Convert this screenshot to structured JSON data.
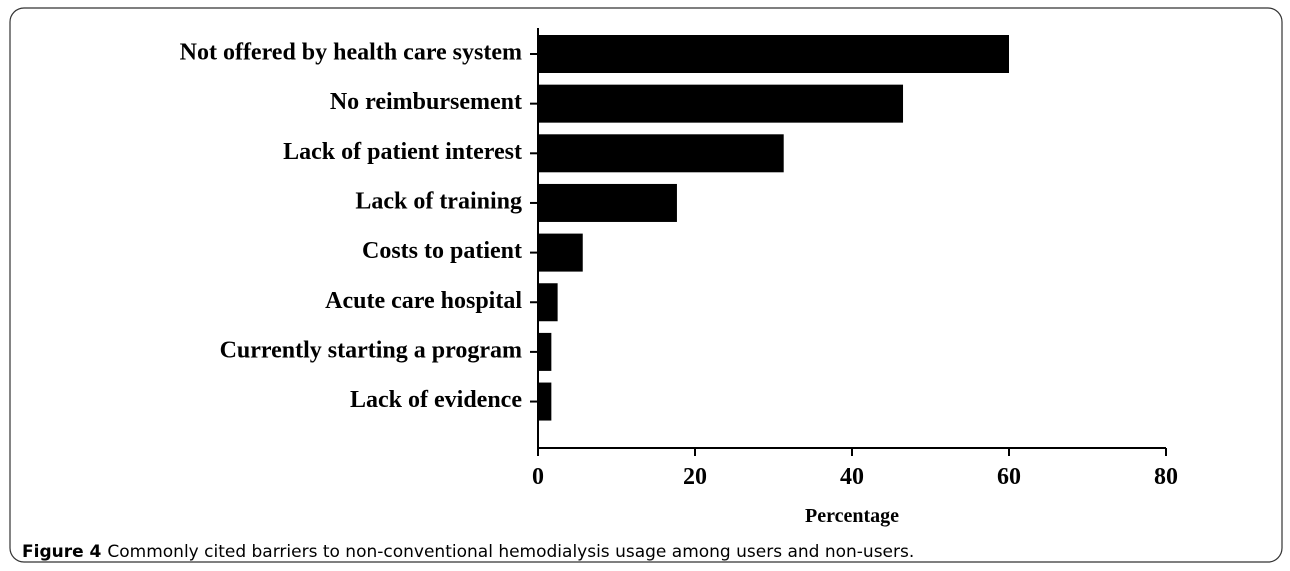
{
  "chart_data": {
    "type": "bar",
    "orientation": "horizontal",
    "categories": [
      "Not offered by health care system",
      "No reimbursement",
      "Lack of patient interest",
      "Lack of training",
      "Costs to patient",
      "Acute care hospital",
      "Currently starting a program",
      "Lack of evidence"
    ],
    "values": [
      60,
      46.5,
      31.3,
      17.7,
      5.7,
      2.5,
      1.7,
      1.7
    ],
    "color": "#000000",
    "xlabel": "Percentage",
    "xlim": [
      0,
      80
    ],
    "xticks": [
      0,
      20,
      40,
      60,
      80
    ],
    "caption_label": "Figure 4",
    "caption": "Commonly cited barriers to non-conventional hemodialysis usage among users and non-users."
  }
}
